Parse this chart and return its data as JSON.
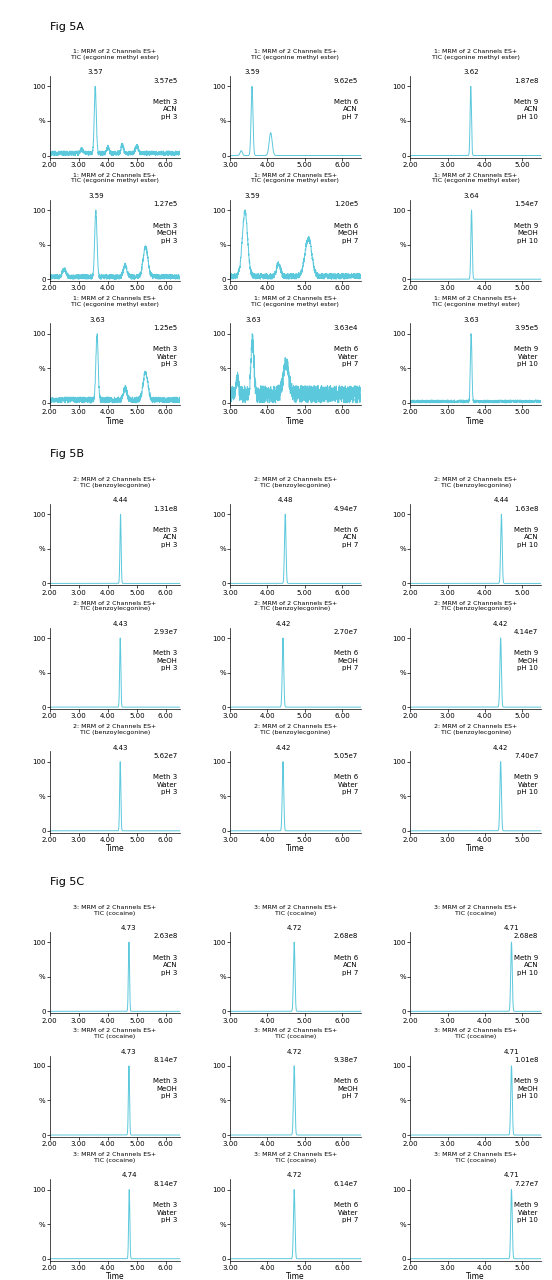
{
  "fig_label_A": "Fig 5A",
  "fig_label_B": "Fig 5B",
  "fig_label_C": "Fig 5C",
  "line_color": "#5bc8dc",
  "bg_color": "white",
  "panels": {
    "A": {
      "rows": [
        {
          "cells": [
            {
              "title": "1: MRM of 2 Channels ES+\nTIC (ecgonine methyl ester)",
              "peak_time": 3.57,
              "peak_label": "3.57e5",
              "meth": "Meth 3",
              "solvent": "ACN",
              "ph": "pH 3",
              "xmin": 2.0,
              "xmax": 6.5,
              "xticks": [
                2.0,
                3.0,
                4.0,
                5.0,
                6.0
              ],
              "peak_shape": "noisy",
              "time_label": false
            },
            {
              "title": "1: MRM of 2 Channels ES+\nTIC (ecgonine methyl ester)",
              "peak_time": 3.59,
              "peak_label": "9.62e5",
              "meth": "Meth 6",
              "solvent": "ACN",
              "ph": "pH 7",
              "xmin": 3.0,
              "xmax": 6.5,
              "xticks": [
                3.0,
                4.0,
                5.0,
                6.0
              ],
              "peak_shape": "clean_double",
              "time_label": false
            },
            {
              "title": "1: MRM of 2 Channels ES+\nTIC (ecgonine methyl ester)",
              "peak_time": 3.62,
              "peak_label": "1.87e8",
              "meth": "Meth 9",
              "solvent": "ACN",
              "ph": "pH 10",
              "xmin": 2.0,
              "xmax": 5.5,
              "xticks": [
                2.0,
                3.0,
                4.0,
                5.0
              ],
              "peak_shape": "sharp",
              "time_label": false
            }
          ]
        },
        {
          "cells": [
            {
              "title": "1: MRM of 2 Channels ES+\nTIC (ecgonine methyl ester)",
              "peak_time": 3.59,
              "peak_label": "1.27e5",
              "meth": "Meth 3",
              "solvent": "MeOH",
              "ph": "pH 3",
              "xmin": 2.0,
              "xmax": 6.5,
              "xticks": [
                2.0,
                3.0,
                4.0,
                5.0,
                6.0
              ],
              "peak_shape": "noisy_meoh3",
              "time_label": false
            },
            {
              "title": "1: MRM of 2 Channels ES+\nTIC (ecgonine methyl ester)",
              "peak_time": 3.59,
              "peak_label": "1.20e5",
              "meth": "Meth 6",
              "solvent": "MeOH",
              "ph": "pH 7",
              "xmin": 3.0,
              "xmax": 6.5,
              "xticks": [
                3.0,
                4.0,
                5.0,
                6.0
              ],
              "peak_shape": "broad_noisy_meoh6",
              "time_label": false
            },
            {
              "title": "1: MRM of 2 Channels ES+\nTIC (ecgonine methyl ester)",
              "peak_time": 3.64,
              "peak_label": "1.54e7",
              "meth": "Meth 9",
              "solvent": "MeOH",
              "ph": "pH 10",
              "xmin": 2.0,
              "xmax": 5.5,
              "xticks": [
                2.0,
                3.0,
                4.0,
                5.0
              ],
              "peak_shape": "sharp",
              "time_label": false
            }
          ]
        },
        {
          "cells": [
            {
              "title": "1: MRM of 2 Channels ES+\nTIC (ecgonine methyl ester)",
              "peak_time": 3.63,
              "peak_label": "1.25e5",
              "meth": "Meth 3",
              "solvent": "Water",
              "ph": "pH 3",
              "xmin": 2.0,
              "xmax": 6.5,
              "xticks": [
                2.0,
                3.0,
                4.0,
                5.0,
                6.0
              ],
              "peak_shape": "noisy_water3",
              "time_label": true
            },
            {
              "title": "1: MRM of 2 Channels ES+\nTIC (ecgonine methyl ester)",
              "peak_time": 3.63,
              "peak_label": "3.63e4",
              "meth": "Meth 6",
              "solvent": "Water",
              "ph": "pH 7",
              "xmin": 3.0,
              "xmax": 6.5,
              "xticks": [
                3.0,
                4.0,
                5.0,
                6.0
              ],
              "peak_shape": "very_noisy_water6",
              "time_label": true
            },
            {
              "title": "1: MRM of 2 Channels ES+\nTIC (ecgonine methyl ester)",
              "peak_time": 3.63,
              "peak_label": "3.95e5",
              "meth": "Meth 9",
              "solvent": "Water",
              "ph": "pH 10",
              "xmin": 2.0,
              "xmax": 5.5,
              "xticks": [
                2.0,
                3.0,
                4.0,
                5.0
              ],
              "peak_shape": "sharp_small_water9",
              "time_label": true
            }
          ]
        }
      ]
    },
    "B": {
      "rows": [
        {
          "cells": [
            {
              "title": "2: MRM of 2 Channels ES+\nTIC (benzoylecgonine)",
              "peak_time": 4.44,
              "peak_label": "1.31e8",
              "meth": "Meth 3",
              "solvent": "ACN",
              "ph": "pH 3",
              "xmin": 2.0,
              "xmax": 6.5,
              "xticks": [
                2.0,
                3.0,
                4.0,
                5.0,
                6.0
              ],
              "peak_shape": "sharp_tall",
              "time_label": false
            },
            {
              "title": "2: MRM of 2 Channels ES+\nTIC (benzoylecgonine)",
              "peak_time": 4.48,
              "peak_label": "4.94e7",
              "meth": "Meth 6",
              "solvent": "ACN",
              "ph": "pH 7",
              "xmin": 3.0,
              "xmax": 6.5,
              "xticks": [
                3.0,
                4.0,
                5.0,
                6.0
              ],
              "peak_shape": "sharp_tall",
              "time_label": false
            },
            {
              "title": "2: MRM of 2 Channels ES+\nTIC (benzoylecgonine)",
              "peak_time": 4.44,
              "peak_label": "1.63e8",
              "meth": "Meth 9",
              "solvent": "ACN",
              "ph": "pH 10",
              "xmin": 2.0,
              "xmax": 5.5,
              "xticks": [
                2.0,
                3.0,
                4.0,
                5.0
              ],
              "peak_shape": "sharp_tall",
              "time_label": false
            }
          ]
        },
        {
          "cells": [
            {
              "title": "2: MRM of 2 Channels ES+\nTIC (benzoylecgonine)",
              "peak_time": 4.43,
              "peak_label": "2.93e7",
              "meth": "Meth 3",
              "solvent": "MeOH",
              "ph": "pH 3",
              "xmin": 2.0,
              "xmax": 6.5,
              "xticks": [
                2.0,
                3.0,
                4.0,
                5.0,
                6.0
              ],
              "peak_shape": "sharp_tall",
              "time_label": false
            },
            {
              "title": "2: MRM of 2 Channels ES+\nTIC (benzoylecgonine)",
              "peak_time": 4.42,
              "peak_label": "2.70e7",
              "meth": "Meth 6",
              "solvent": "MeOH",
              "ph": "pH 7",
              "xmin": 3.0,
              "xmax": 6.5,
              "xticks": [
                3.0,
                4.0,
                5.0,
                6.0
              ],
              "peak_shape": "sharp_tall",
              "time_label": false
            },
            {
              "title": "2: MRM of 2 Channels ES+\nTIC (benzoylecgonine)",
              "peak_time": 4.42,
              "peak_label": "4.14e7",
              "meth": "Meth 9",
              "solvent": "MeOH",
              "ph": "pH 10",
              "xmin": 2.0,
              "xmax": 5.5,
              "xticks": [
                2.0,
                3.0,
                4.0,
                5.0
              ],
              "peak_shape": "sharp_tall",
              "time_label": false
            }
          ]
        },
        {
          "cells": [
            {
              "title": "2: MRM of 2 Channels ES+\nTIC (benzoylecgonine)",
              "peak_time": 4.43,
              "peak_label": "5.62e7",
              "meth": "Meth 3",
              "solvent": "Water",
              "ph": "pH 3",
              "xmin": 2.0,
              "xmax": 6.5,
              "xticks": [
                2.0,
                3.0,
                4.0,
                5.0,
                6.0
              ],
              "peak_shape": "sharp_tall",
              "time_label": true
            },
            {
              "title": "2: MRM of 2 Channels ES+\nTIC (benzoylecgonine)",
              "peak_time": 4.42,
              "peak_label": "5.05e7",
              "meth": "Meth 6",
              "solvent": "Water",
              "ph": "pH 7",
              "xmin": 3.0,
              "xmax": 6.5,
              "xticks": [
                3.0,
                4.0,
                5.0,
                6.0
              ],
              "peak_shape": "sharp_tall",
              "time_label": true
            },
            {
              "title": "2: MRM of 2 Channels ES+\nTIC (benzoylecgonine)",
              "peak_time": 4.42,
              "peak_label": "7.40e7",
              "meth": "Meth 9",
              "solvent": "Water",
              "ph": "pH 10",
              "xmin": 2.0,
              "xmax": 5.5,
              "xticks": [
                2.0,
                3.0,
                4.0,
                5.0
              ],
              "peak_shape": "sharp_tall",
              "time_label": true
            }
          ]
        }
      ]
    },
    "C": {
      "rows": [
        {
          "cells": [
            {
              "title": "3: MRM of 2 Channels ES+\nTIC (cocaine)",
              "peak_time": 4.73,
              "peak_label": "2.63e8",
              "meth": "Meth 3",
              "solvent": "ACN",
              "ph": "pH 3",
              "xmin": 2.0,
              "xmax": 6.5,
              "xticks": [
                2.0,
                3.0,
                4.0,
                5.0,
                6.0
              ],
              "peak_shape": "sharp_tall",
              "time_label": false
            },
            {
              "title": "3: MRM of 2 Channels ES+\nTIC (cocaine)",
              "peak_time": 4.72,
              "peak_label": "2.68e8",
              "meth": "Meth 6",
              "solvent": "ACN",
              "ph": "pH 7",
              "xmin": 3.0,
              "xmax": 6.5,
              "xticks": [
                3.0,
                4.0,
                5.0,
                6.0
              ],
              "peak_shape": "sharp_tall",
              "time_label": false
            },
            {
              "title": "3: MRM of 2 Channels ES+\nTIC (cocaine)",
              "peak_time": 4.71,
              "peak_label": "2.68e8",
              "meth": "Meth 9",
              "solvent": "ACN",
              "ph": "pH 10",
              "xmin": 2.0,
              "xmax": 5.5,
              "xticks": [
                2.0,
                3.0,
                4.0,
                5.0
              ],
              "peak_shape": "sharp_tall",
              "time_label": false
            }
          ]
        },
        {
          "cells": [
            {
              "title": "3: MRM of 2 Channels ES+\nTIC (cocaine)",
              "peak_time": 4.73,
              "peak_label": "8.14e7",
              "meth": "Meth 3",
              "solvent": "MeOH",
              "ph": "pH 3",
              "xmin": 2.0,
              "xmax": 6.5,
              "xticks": [
                2.0,
                3.0,
                4.0,
                5.0,
                6.0
              ],
              "peak_shape": "sharp_tall",
              "time_label": false
            },
            {
              "title": "3: MRM of 2 Channels ES+\nTIC (cocaine)",
              "peak_time": 4.72,
              "peak_label": "9.38e7",
              "meth": "Meth 6",
              "solvent": "MeOH",
              "ph": "pH 7",
              "xmin": 3.0,
              "xmax": 6.5,
              "xticks": [
                3.0,
                4.0,
                5.0,
                6.0
              ],
              "peak_shape": "sharp_tall",
              "time_label": false
            },
            {
              "title": "3: MRM of 2 Channels ES+\nTIC (cocaine)",
              "peak_time": 4.71,
              "peak_label": "1.01e8",
              "meth": "Meth 9",
              "solvent": "MeOH",
              "ph": "pH 10",
              "xmin": 2.0,
              "xmax": 5.5,
              "xticks": [
                2.0,
                3.0,
                4.0,
                5.0
              ],
              "peak_shape": "sharp_tall",
              "time_label": false
            }
          ]
        },
        {
          "cells": [
            {
              "title": "3: MRM of 2 Channels ES+\nTIC (cocaine)",
              "peak_time": 4.74,
              "peak_label": "8.14e7",
              "meth": "Meth 3",
              "solvent": "Water",
              "ph": "pH 3",
              "xmin": 2.0,
              "xmax": 6.5,
              "xticks": [
                2.0,
                3.0,
                4.0,
                5.0,
                6.0
              ],
              "peak_shape": "sharp_tall",
              "time_label": true
            },
            {
              "title": "3: MRM of 2 Channels ES+\nTIC (cocaine)",
              "peak_time": 4.72,
              "peak_label": "6.14e7",
              "meth": "Meth 6",
              "solvent": "Water",
              "ph": "pH 7",
              "xmin": 3.0,
              "xmax": 6.5,
              "xticks": [
                3.0,
                4.0,
                5.0,
                6.0
              ],
              "peak_shape": "sharp_tall",
              "time_label": true
            },
            {
              "title": "3: MRM of 2 Channels ES+\nTIC (cocaine)",
              "peak_time": 4.71,
              "peak_label": "7.27e7",
              "meth": "Meth 9",
              "solvent": "Water",
              "ph": "pH 10",
              "xmin": 2.0,
              "xmax": 5.5,
              "xticks": [
                2.0,
                3.0,
                4.0,
                5.0
              ],
              "peak_shape": "sharp_tall",
              "time_label": true
            }
          ]
        }
      ]
    }
  }
}
